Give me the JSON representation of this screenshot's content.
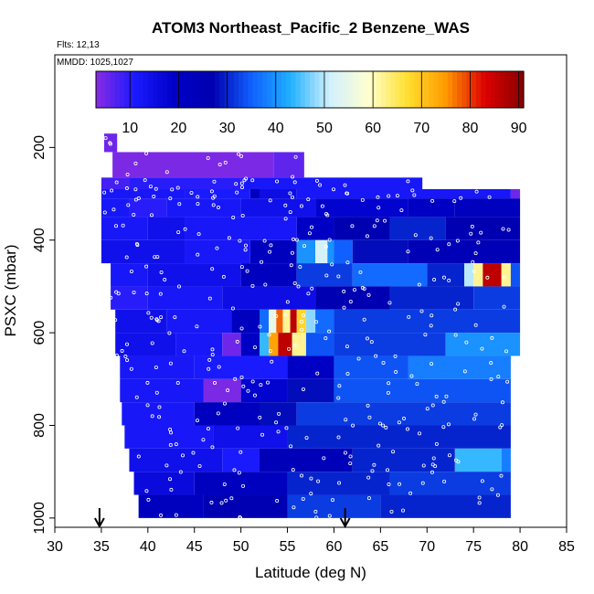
{
  "chart_data": {
    "type": "heatmap",
    "title": "ATOM3 Northeast_Pacific_2 Benzene_WAS",
    "flights_label": "Flts: 12,13",
    "date_label": "MMDD: 1025,1027",
    "xlabel": "Latitude (deg N)",
    "ylabel": "PSXC (mbar)",
    "xlim": [
      30,
      85
    ],
    "ylim": [
      1020,
      0
    ],
    "x_ticks": [
      "30",
      "35",
      "40",
      "45",
      "50",
      "55",
      "60",
      "65",
      "70",
      "75",
      "80",
      "85"
    ],
    "x_tick_values": [
      30,
      35,
      40,
      45,
      50,
      55,
      60,
      65,
      70,
      75,
      80,
      85
    ],
    "y_ticks": [
      "200",
      "400",
      "600",
      "800",
      "1000"
    ],
    "y_tick_values": [
      200,
      400,
      600,
      800,
      1000
    ],
    "colorbar": {
      "min": 3,
      "max": 91,
      "tick_labels": [
        "10",
        "20",
        "30",
        "40",
        "50",
        "60",
        "70",
        "80",
        "90"
      ],
      "tick_values": [
        10,
        20,
        30,
        40,
        50,
        60,
        70,
        80,
        90
      ],
      "colors": [
        "#8a2be2",
        "#1a1aff",
        "#0000c8",
        "#0000b0",
        "#1060ff",
        "#20b0ff",
        "#d0f0ff",
        "#ffffd0",
        "#ffe030",
        "#ff9900",
        "#dd0000",
        "#880000"
      ]
    },
    "arrows_latitude": [
      34.8,
      61.2
    ],
    "layers": [
      {
        "p_top": 170,
        "p_bot": 210,
        "segments": [
          [
            35.3,
            36.7,
            5
          ]
        ]
      },
      {
        "p_top": 210,
        "p_bot": 265,
        "segments": [
          [
            36.2,
            53.5,
            4
          ],
          [
            53.5,
            56.8,
            6
          ]
        ]
      },
      {
        "p_top": 265,
        "p_bot": 290,
        "segments": [
          [
            35,
            38,
            8
          ],
          [
            38,
            50,
            10
          ],
          [
            50,
            69.5,
            12
          ]
        ]
      },
      {
        "p_top": 290,
        "p_bot": 310,
        "segments": [
          [
            35,
            44,
            12
          ],
          [
            44,
            51,
            11
          ],
          [
            51,
            52,
            22
          ],
          [
            52,
            56,
            15
          ],
          [
            56,
            79,
            12
          ],
          [
            79,
            80,
            5
          ]
        ]
      },
      {
        "p_top": 310,
        "p_bot": 350,
        "segments": [
          [
            35,
            38,
            12
          ],
          [
            38,
            42,
            10
          ],
          [
            42,
            50,
            12
          ],
          [
            50,
            58,
            14
          ],
          [
            58,
            68,
            18
          ],
          [
            68,
            73,
            20
          ],
          [
            73,
            80,
            22
          ]
        ]
      },
      {
        "p_top": 350,
        "p_bot": 400,
        "segments": [
          [
            35,
            40,
            12
          ],
          [
            40,
            44,
            14
          ],
          [
            44,
            56,
            12
          ],
          [
            56,
            60,
            20
          ],
          [
            60,
            66,
            26
          ],
          [
            66,
            72,
            30
          ],
          [
            72,
            80,
            26
          ]
        ]
      },
      {
        "p_top": 400,
        "p_bot": 450,
        "segments": [
          [
            35,
            44,
            14
          ],
          [
            44,
            51,
            12
          ],
          [
            51,
            56,
            22
          ],
          [
            56,
            58,
            40
          ],
          [
            58,
            59.3,
            52
          ],
          [
            59.3,
            60,
            40
          ],
          [
            60,
            62,
            35
          ],
          [
            62,
            68,
            28
          ],
          [
            68,
            80,
            25
          ]
        ]
      },
      {
        "p_top": 450,
        "p_bot": 500,
        "segments": [
          [
            36,
            40,
            12
          ],
          [
            40,
            50,
            14
          ],
          [
            50,
            56,
            22
          ],
          [
            56,
            62,
            32
          ],
          [
            62,
            70,
            36
          ],
          [
            70,
            74,
            30
          ],
          [
            74,
            75,
            50
          ],
          [
            75,
            76,
            62
          ],
          [
            76,
            78,
            86
          ],
          [
            78,
            79,
            62
          ],
          [
            79,
            80,
            34
          ]
        ]
      },
      {
        "p_top": 500,
        "p_bot": 550,
        "segments": [
          [
            36,
            40,
            10
          ],
          [
            40,
            48,
            12
          ],
          [
            48,
            58,
            15
          ],
          [
            58,
            66,
            26
          ],
          [
            66,
            75,
            30
          ],
          [
            75,
            80,
            32
          ]
        ]
      },
      {
        "p_top": 550,
        "p_bot": 600,
        "segments": [
          [
            36.5,
            42,
            14
          ],
          [
            42,
            49,
            12
          ],
          [
            49,
            52,
            22
          ],
          [
            52,
            53,
            36
          ],
          [
            53,
            53.8,
            55
          ],
          [
            53.8,
            54.5,
            78
          ],
          [
            54.5,
            55.3,
            62
          ],
          [
            55.3,
            56,
            86
          ],
          [
            56,
            57,
            68
          ],
          [
            57,
            58,
            48
          ],
          [
            58,
            60,
            36
          ],
          [
            60,
            80,
            32
          ]
        ]
      },
      {
        "p_top": 600,
        "p_bot": 650,
        "segments": [
          [
            36.5,
            43,
            14
          ],
          [
            43,
            48,
            12
          ],
          [
            48,
            50,
            5
          ],
          [
            50,
            52,
            20
          ],
          [
            52,
            53,
            44
          ],
          [
            53,
            54,
            74
          ],
          [
            54,
            55.5,
            86
          ],
          [
            55.5,
            57,
            62
          ],
          [
            57,
            60,
            34
          ],
          [
            60,
            72,
            32
          ],
          [
            72,
            80,
            40
          ]
        ]
      },
      {
        "p_top": 650,
        "p_bot": 700,
        "segments": [
          [
            37,
            45,
            12
          ],
          [
            45,
            55,
            11
          ],
          [
            55,
            60,
            20
          ],
          [
            60,
            68,
            34
          ],
          [
            68,
            79,
            38
          ]
        ]
      },
      {
        "p_top": 700,
        "p_bot": 750,
        "segments": [
          [
            37,
            46,
            12
          ],
          [
            46,
            50,
            4
          ],
          [
            50,
            55,
            18
          ],
          [
            55,
            60,
            28
          ],
          [
            60,
            79,
            34
          ]
        ]
      },
      {
        "p_top": 750,
        "p_bot": 800,
        "segments": [
          [
            37.2,
            45,
            12
          ],
          [
            45,
            52,
            22
          ],
          [
            52,
            56,
            28
          ],
          [
            56,
            79,
            32
          ]
        ]
      },
      {
        "p_top": 800,
        "p_bot": 850,
        "segments": [
          [
            37.5,
            47,
            12
          ],
          [
            47,
            55,
            14
          ],
          [
            55,
            79,
            30
          ]
        ]
      },
      {
        "p_top": 850,
        "p_bot": 900,
        "segments": [
          [
            38,
            48,
            14
          ],
          [
            48,
            52,
            11
          ],
          [
            52,
            62,
            24
          ],
          [
            62,
            73,
            30
          ],
          [
            73,
            78,
            44
          ],
          [
            78,
            79,
            38
          ]
        ]
      },
      {
        "p_top": 900,
        "p_bot": 950,
        "segments": [
          [
            38.5,
            45,
            16
          ],
          [
            45,
            55,
            22
          ],
          [
            55,
            66,
            30
          ],
          [
            66,
            79,
            32
          ]
        ]
      },
      {
        "p_top": 950,
        "p_bot": 1000,
        "segments": [
          [
            39,
            46,
            22
          ],
          [
            46,
            55,
            26
          ],
          [
            55,
            65,
            32
          ],
          [
            65,
            79,
            30
          ]
        ]
      }
    ]
  }
}
